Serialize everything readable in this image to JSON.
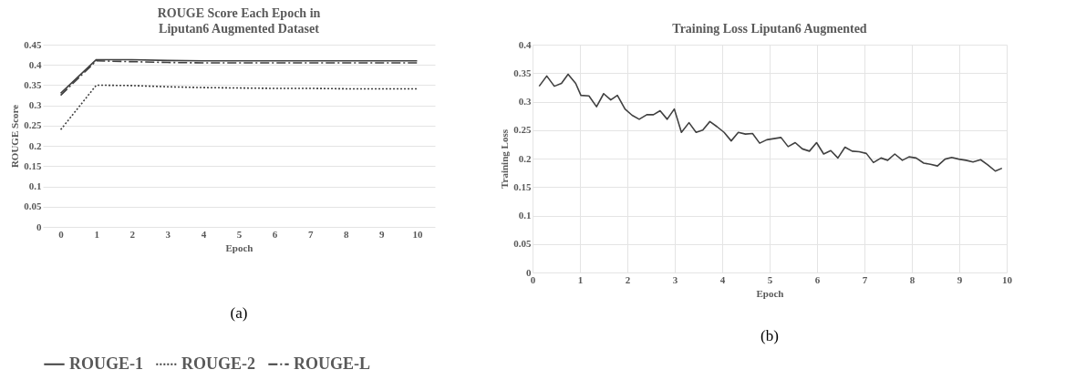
{
  "chart_data": [
    {
      "type": "line",
      "title": "ROUGE Score Each Epoch in Liputan6 Augmented Dataset",
      "xlabel": "Epoch",
      "ylabel": "ROUGE Score",
      "categories": [
        "0",
        "1",
        "2",
        "3",
        "4",
        "5",
        "6",
        "7",
        "8",
        "9",
        "10"
      ],
      "series": [
        {
          "name": "ROUGE-1",
          "color": "#404040",
          "line_style": "solid",
          "values": [
            0.33,
            0.413,
            0.413,
            0.411,
            0.41,
            0.41,
            0.41,
            0.41,
            0.41,
            0.41,
            0.41
          ]
        },
        {
          "name": "ROUGE-2",
          "color": "#404040",
          "line_style": "dotted",
          "values": [
            0.24,
            0.35,
            0.349,
            0.346,
            0.344,
            0.343,
            0.342,
            0.342,
            0.341,
            0.341,
            0.341
          ]
        },
        {
          "name": "ROUGE-L",
          "color": "#404040",
          "line_style": "dashed",
          "values": [
            0.325,
            0.41,
            0.408,
            0.406,
            0.405,
            0.405,
            0.405,
            0.405,
            0.405,
            0.405,
            0.405
          ]
        }
      ],
      "ylim": [
        0,
        0.45
      ],
      "yticks": [
        0,
        0.05,
        0.1,
        0.15,
        0.2,
        0.25,
        0.3,
        0.35,
        0.4,
        0.45
      ],
      "grid": "y",
      "legend": "bottom",
      "annotations": [
        "(a)"
      ]
    },
    {
      "type": "line",
      "title": "Training Loss Liputan6 Augmented",
      "xlabel": "Epoch",
      "ylabel": "Training Loss",
      "x": [
        0.14,
        0.3,
        0.46,
        0.61,
        0.75,
        0.91,
        1.02,
        1.19,
        1.35,
        1.5,
        1.65,
        1.79,
        1.95,
        2.1,
        2.25,
        2.41,
        2.55,
        2.69,
        2.84,
        2.99,
        3.14,
        3.3,
        3.45,
        3.59,
        3.74,
        3.89,
        4.04,
        4.19,
        4.34,
        4.49,
        4.64,
        4.79,
        4.94,
        5.09,
        5.24,
        5.39,
        5.54,
        5.69,
        5.84,
        5.99,
        6.14,
        6.29,
        6.44,
        6.59,
        6.74,
        6.89,
        7.04,
        7.19,
        7.35,
        7.49,
        7.64,
        7.8,
        7.94,
        8.09,
        8.25,
        8.39,
        8.54,
        8.7,
        8.84,
        8.99,
        9.14,
        9.29,
        9.45,
        9.6,
        9.76,
        9.9
      ],
      "series": [
        {
          "color": "#404040",
          "values": [
            0.327,
            0.345,
            0.327,
            0.332,
            0.348,
            0.332,
            0.311,
            0.31,
            0.291,
            0.314,
            0.303,
            0.311,
            0.287,
            0.276,
            0.269,
            0.277,
            0.277,
            0.284,
            0.269,
            0.287,
            0.246,
            0.263,
            0.246,
            0.25,
            0.265,
            0.256,
            0.246,
            0.231,
            0.246,
            0.243,
            0.244,
            0.227,
            0.233,
            0.235,
            0.237,
            0.221,
            0.228,
            0.217,
            0.213,
            0.228,
            0.208,
            0.214,
            0.201,
            0.22,
            0.213,
            0.212,
            0.209,
            0.193,
            0.201,
            0.197,
            0.208,
            0.197,
            0.203,
            0.201,
            0.192,
            0.19,
            0.187,
            0.199,
            0.202,
            0.199,
            0.197,
            0.194,
            0.198,
            0.189,
            0.178,
            0.183
          ]
        }
      ],
      "xlim": [
        0,
        10
      ],
      "xticks": [
        0,
        1,
        2,
        3,
        4,
        5,
        6,
        7,
        8,
        9,
        10
      ],
      "ylim": [
        0,
        0.4
      ],
      "yticks": [
        0,
        0.05,
        0.1,
        0.15,
        0.2,
        0.25,
        0.3,
        0.35,
        0.4
      ],
      "grid": true,
      "annotations": [
        "(b)"
      ]
    }
  ]
}
